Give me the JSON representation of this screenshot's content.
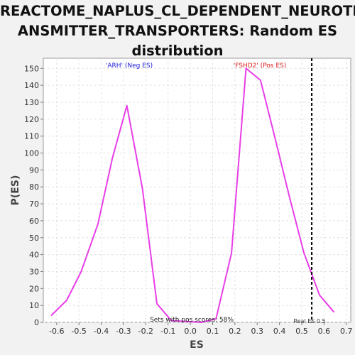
{
  "chart_data": {
    "type": "line",
    "title_lines": [
      "REACTOME_NAPLUS_CL_DEPENDENT_NEUROTR",
      "ANSMITTER_TRANSPORTERS: Random ES",
      "distribution"
    ],
    "xlabel": "ES",
    "ylabel": "P(ES)",
    "xlim": [
      -0.66,
      0.72
    ],
    "ylim": [
      0,
      156
    ],
    "x_ticks": [
      "-0.6",
      "-0.5",
      "-0.4",
      "-0.3",
      "-0.2",
      "-0.1",
      "0.0",
      "0.1",
      "0.2",
      "0.3",
      "0.4",
      "0.5",
      "0.6",
      "0.7"
    ],
    "y_ticks": [
      "0",
      "10",
      "20",
      "30",
      "40",
      "50",
      "60",
      "70",
      "80",
      "90",
      "100",
      "110",
      "120",
      "130",
      "140",
      "150"
    ],
    "grid": true,
    "series": [
      {
        "color": "#e83ee8",
        "points": [
          [
            -0.625,
            4
          ],
          [
            -0.555,
            13
          ],
          [
            -0.49,
            30
          ],
          [
            -0.415,
            58
          ],
          [
            -0.35,
            97
          ],
          [
            -0.285,
            128
          ],
          [
            -0.215,
            79
          ],
          [
            -0.15,
            11
          ],
          [
            -0.085,
            1
          ],
          [
            0.05,
            0
          ],
          [
            0.115,
            2
          ],
          [
            0.185,
            41
          ],
          [
            0.25,
            150
          ],
          [
            0.315,
            143
          ],
          [
            0.38,
            109
          ],
          [
            0.445,
            74
          ],
          [
            0.51,
            41
          ],
          [
            0.58,
            16
          ],
          [
            0.645,
            6
          ]
        ]
      }
    ],
    "real_es_line": {
      "x": 0.545,
      "label": "Real ES 0.5"
    },
    "annotations": {
      "neg": {
        "text": "'ARH' (Neg ES)",
        "color": "#1a1adc"
      },
      "pos": {
        "text": "'FSHD2' (Pos ES)",
        "color": "#dc1a1a"
      },
      "bottom": {
        "text": "Sets with pos scores: 58%"
      }
    }
  }
}
